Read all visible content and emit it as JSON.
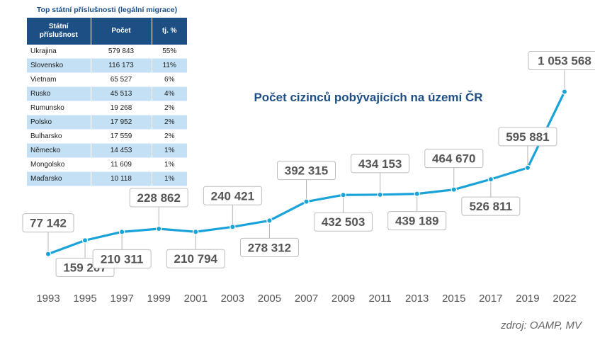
{
  "table": {
    "title": "Top státní příslušnosti (legální migrace)",
    "headers": [
      "Státní příslušnost",
      "Počet",
      "tj. %"
    ],
    "rows": [
      [
        "Ukrajina",
        "579 843",
        "55%"
      ],
      [
        "Slovensko",
        "116 173",
        "11%"
      ],
      [
        "Vietnam",
        "65 527",
        "6%"
      ],
      [
        "Rusko",
        "45 513",
        "4%"
      ],
      [
        "Rumunsko",
        "19 268",
        "2%"
      ],
      [
        "Polsko",
        "17 952",
        "2%"
      ],
      [
        "Bulharsko",
        "17 559",
        "2%"
      ],
      [
        "Německo",
        "14 453",
        "1%"
      ],
      [
        "Mongolsko",
        "11 609",
        "1%"
      ],
      [
        "Maďarsko",
        "10 118",
        "1%"
      ]
    ]
  },
  "chart_data": {
    "type": "line",
    "title": "Počet cizinců pobývajících na území ČR",
    "x": [
      "1993",
      "1995",
      "1997",
      "1999",
      "2001",
      "2003",
      "2005",
      "2007",
      "2009",
      "2011",
      "2013",
      "2015",
      "2017",
      "2019",
      "2022"
    ],
    "series": [
      {
        "values": [
          77142,
          159207,
          210311,
          228862,
          210794,
          240421,
          278312,
          392315,
          432503,
          434153,
          439189,
          464670,
          526811,
          595881,
          1053568
        ],
        "labels": [
          "77 142",
          "159 207",
          "210 311",
          "228 862",
          "210 794",
          "240 421",
          "278 312",
          "392 315",
          "432 503",
          "434 153",
          "439 189",
          "464 670",
          "526 811",
          "595 881",
          "1 053 568"
        ]
      }
    ],
    "ylim": [
      20000,
      1060000
    ],
    "grid": false,
    "legend": "none",
    "line_color": "#1aa3d9",
    "source": "zdroj: OAMP, MV"
  }
}
